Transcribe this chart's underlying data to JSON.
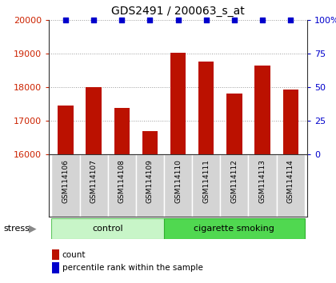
{
  "title": "GDS2491 / 200063_s_at",
  "samples": [
    "GSM114106",
    "GSM114107",
    "GSM114108",
    "GSM114109",
    "GSM114110",
    "GSM114111",
    "GSM114112",
    "GSM114113",
    "GSM114114"
  ],
  "counts": [
    17450,
    18000,
    17380,
    16700,
    19020,
    18750,
    17800,
    18630,
    17920
  ],
  "groups": [
    {
      "label": "control",
      "n": 4,
      "color": "#c8f5c8",
      "border": "#60c860"
    },
    {
      "label": "cigarette smoking",
      "n": 5,
      "color": "#50d850",
      "border": "#30b030"
    }
  ],
  "group_label": "stress",
  "bar_color": "#bb1100",
  "dot_color": "#0000cc",
  "ylim_left": [
    16000,
    20000
  ],
  "ylim_right": [
    0,
    100
  ],
  "yticks_left": [
    16000,
    17000,
    18000,
    19000,
    20000
  ],
  "yticks_right": [
    0,
    25,
    50,
    75,
    100
  ],
  "yticklabels_right": [
    "0",
    "25",
    "50",
    "75",
    "100%"
  ],
  "bar_width": 0.55,
  "grid_color": "#999999",
  "tick_label_bg": "#d4d4d4",
  "tick_label_border": "#888888",
  "legend_count_label": "count",
  "legend_pct_label": "percentile rank within the sample"
}
